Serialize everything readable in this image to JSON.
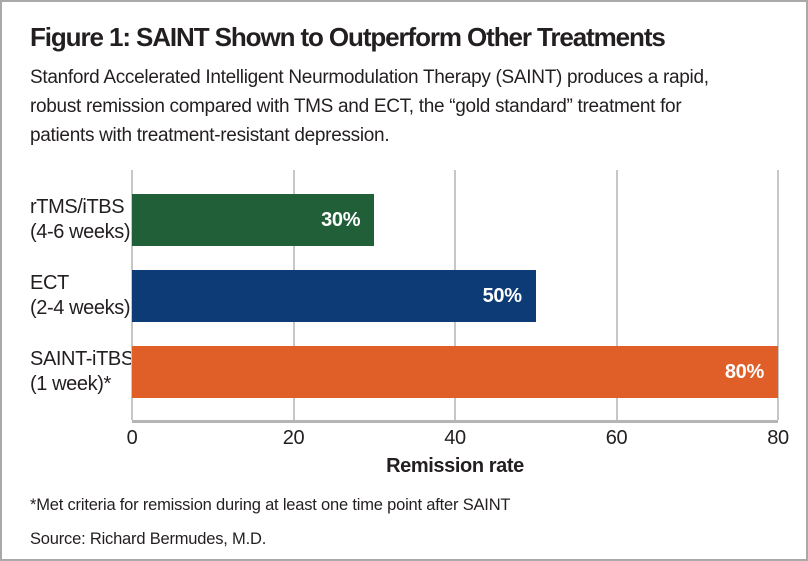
{
  "figure": {
    "title": "Figure 1: SAINT Shown to Outperform Other Treatments",
    "subtitle_lines": [
      "Stanford Accelerated Intelligent Neurmodulation Therapy (SAINT) produces a rapid,",
      "robust remission compared with TMS and ECT, the “gold standard” treatment for",
      "patients with treatment-resistant depression."
    ],
    "footnote": "*Met criteria for remission during at least one time point after SAINT",
    "source": "Source: Richard Bermudes, M.D."
  },
  "chart_data": {
    "type": "bar",
    "orientation": "horizontal",
    "categories": [
      "rTMS/iTBS (4-6 weeks)",
      "ECT (2-4 weeks)",
      "SAINT-iTBS (1 week)*"
    ],
    "category_label_lines": [
      [
        "rTMS/iTBS",
        "(4-6 weeks)"
      ],
      [
        "ECT",
        "(2-4 weeks)"
      ],
      [
        "SAINT-iTBS",
        "(1 week)*"
      ]
    ],
    "values": [
      30,
      50,
      80
    ],
    "value_labels": [
      "30%",
      "50%",
      "80%"
    ],
    "bar_colors": [
      "#215f38",
      "#0d3b76",
      "#e05e28"
    ],
    "title": "",
    "xlabel": "Remission rate",
    "ylabel": "",
    "xlim": [
      0,
      80
    ],
    "xticks": [
      0,
      20,
      40,
      60,
      80
    ],
    "grid": true,
    "legend": "none"
  },
  "colors": {
    "background": "#ffffff",
    "border": "#a9a9a9",
    "text": "#231f20",
    "gridline": "#c7c7c7",
    "axis_line": "#b5b5b5",
    "bar_value_text": "#ffffff"
  }
}
